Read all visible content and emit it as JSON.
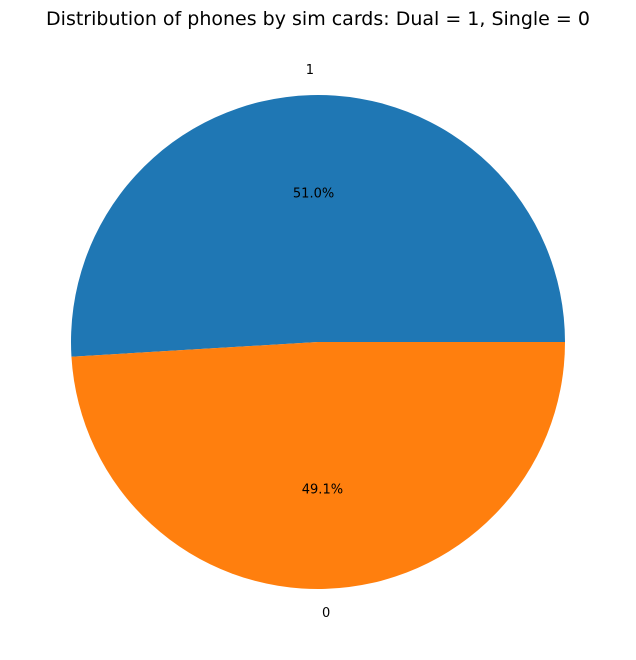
{
  "chart_data": {
    "type": "pie",
    "title": "Distribution of phones by sim cards: Dual = 1, Single = 0",
    "categories": [
      "1",
      "0"
    ],
    "values": [
      50.95,
      49.05
    ],
    "percent_labels": [
      "51.0%",
      "49.1%"
    ],
    "colors": [
      "#1f77b4",
      "#ff7f0e"
    ],
    "start_angle_degrees": 0,
    "direction": "counterclockwise",
    "legend": "none"
  }
}
